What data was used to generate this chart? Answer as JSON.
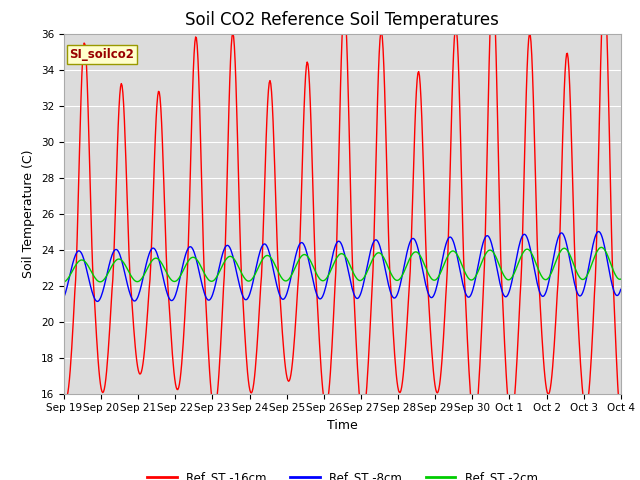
{
  "title": "Soil CO2 Reference Soil Temperatures",
  "ylabel": "Soil Temperature (C)",
  "xlabel": "Time",
  "ylim": [
    16,
    36
  ],
  "bg_color": "#dcdcdc",
  "fig_bg_color": "#ffffff",
  "grid_color": "#ffffff",
  "line_red": "#ff0000",
  "line_blue": "#0000ff",
  "line_green": "#00cc00",
  "legend_box_label": "SI_soilco2",
  "legend_box_bg": "#ffffcc",
  "legend_box_border": "#999900",
  "legend_items": [
    "Ref_ST -16cm",
    "Ref_ST -8cm",
    "Ref_ST -2cm"
  ],
  "xtick_labels": [
    "Sep 19",
    "Sep 20",
    "Sep 21",
    "Sep 22",
    "Sep 23",
    "Sep 24",
    "Sep 25",
    "Sep 26",
    "Sep 27",
    "Sep 28",
    "Sep 29",
    "Sep 30",
    "Oct 1",
    "Oct 2",
    "Oct 3",
    "Oct 4"
  ],
  "ytick_vals": [
    16,
    18,
    20,
    22,
    24,
    26,
    28,
    30,
    32,
    34,
    36
  ],
  "title_fontsize": 12,
  "axis_label_fontsize": 9,
  "tick_fontsize": 7.5,
  "linewidth": 1.0
}
